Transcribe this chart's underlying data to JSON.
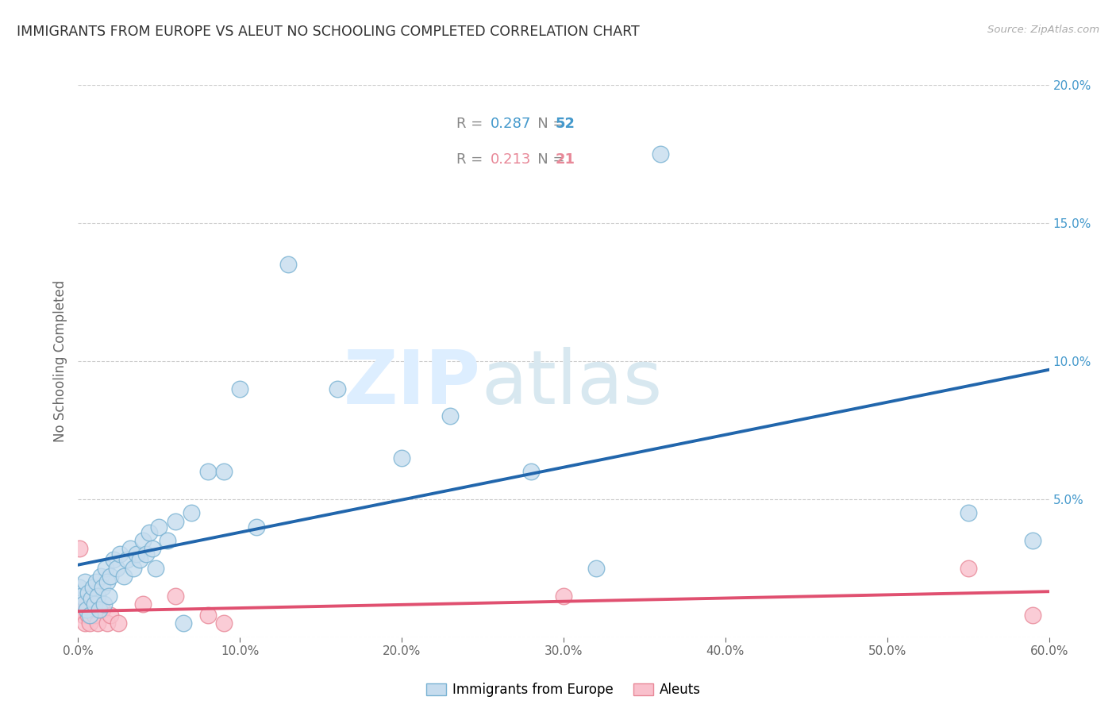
{
  "title": "IMMIGRANTS FROM EUROPE VS ALEUT NO SCHOOLING COMPLETED CORRELATION CHART",
  "source": "Source: ZipAtlas.com",
  "ylabel": "No Schooling Completed",
  "xlim": [
    0,
    0.6
  ],
  "ylim": [
    0,
    0.2
  ],
  "xtick_vals": [
    0.0,
    0.1,
    0.2,
    0.3,
    0.4,
    0.5,
    0.6
  ],
  "ytick_vals": [
    0.0,
    0.05,
    0.1,
    0.15,
    0.2
  ],
  "xticklabels": [
    "0.0%",
    "10.0%",
    "20.0%",
    "30.0%",
    "40.0%",
    "50.0%",
    "60.0%"
  ],
  "yticklabels_right": [
    "",
    "5.0%",
    "10.0%",
    "15.0%",
    "20.0%"
  ],
  "blue_R": "0.287",
  "blue_N": "52",
  "pink_R": "0.213",
  "pink_N": "21",
  "blue_scatter": [
    [
      0.001,
      0.018
    ],
    [
      0.002,
      0.015
    ],
    [
      0.003,
      0.012
    ],
    [
      0.004,
      0.02
    ],
    [
      0.005,
      0.01
    ],
    [
      0.006,
      0.016
    ],
    [
      0.007,
      0.008
    ],
    [
      0.008,
      0.014
    ],
    [
      0.009,
      0.018
    ],
    [
      0.01,
      0.012
    ],
    [
      0.011,
      0.02
    ],
    [
      0.012,
      0.015
    ],
    [
      0.013,
      0.01
    ],
    [
      0.014,
      0.022
    ],
    [
      0.015,
      0.018
    ],
    [
      0.016,
      0.012
    ],
    [
      0.017,
      0.025
    ],
    [
      0.018,
      0.02
    ],
    [
      0.019,
      0.015
    ],
    [
      0.02,
      0.022
    ],
    [
      0.022,
      0.028
    ],
    [
      0.024,
      0.025
    ],
    [
      0.026,
      0.03
    ],
    [
      0.028,
      0.022
    ],
    [
      0.03,
      0.028
    ],
    [
      0.032,
      0.032
    ],
    [
      0.034,
      0.025
    ],
    [
      0.036,
      0.03
    ],
    [
      0.038,
      0.028
    ],
    [
      0.04,
      0.035
    ],
    [
      0.042,
      0.03
    ],
    [
      0.044,
      0.038
    ],
    [
      0.046,
      0.032
    ],
    [
      0.048,
      0.025
    ],
    [
      0.05,
      0.04
    ],
    [
      0.055,
      0.035
    ],
    [
      0.06,
      0.042
    ],
    [
      0.065,
      0.005
    ],
    [
      0.07,
      0.045
    ],
    [
      0.08,
      0.06
    ],
    [
      0.09,
      0.06
    ],
    [
      0.1,
      0.09
    ],
    [
      0.11,
      0.04
    ],
    [
      0.13,
      0.135
    ],
    [
      0.16,
      0.09
    ],
    [
      0.2,
      0.065
    ],
    [
      0.23,
      0.08
    ],
    [
      0.28,
      0.06
    ],
    [
      0.32,
      0.025
    ],
    [
      0.36,
      0.175
    ],
    [
      0.55,
      0.045
    ],
    [
      0.59,
      0.035
    ]
  ],
  "pink_scatter": [
    [
      0.001,
      0.032
    ],
    [
      0.002,
      0.01
    ],
    [
      0.003,
      0.008
    ],
    [
      0.004,
      0.005
    ],
    [
      0.005,
      0.012
    ],
    [
      0.006,
      0.008
    ],
    [
      0.007,
      0.005
    ],
    [
      0.008,
      0.01
    ],
    [
      0.01,
      0.008
    ],
    [
      0.012,
      0.005
    ],
    [
      0.015,
      0.01
    ],
    [
      0.018,
      0.005
    ],
    [
      0.02,
      0.008
    ],
    [
      0.025,
      0.005
    ],
    [
      0.04,
      0.012
    ],
    [
      0.06,
      0.015
    ],
    [
      0.08,
      0.008
    ],
    [
      0.09,
      0.005
    ],
    [
      0.3,
      0.015
    ],
    [
      0.55,
      0.025
    ],
    [
      0.59,
      0.008
    ]
  ],
  "bg_color": "#ffffff",
  "grid_color": "#cccccc",
  "blue_dot_fill": "#c6dcee",
  "blue_dot_edge": "#7ab3d3",
  "pink_dot_fill": "#f9c0cc",
  "pink_dot_edge": "#e88898",
  "blue_line_color": "#2166ac",
  "pink_line_color": "#e05070",
  "title_color": "#333333",
  "axis_color": "#666666",
  "right_tick_color": "#4499cc",
  "watermark_zip_color": "#ddeeff",
  "watermark_atlas_color": "#d8e8f0"
}
